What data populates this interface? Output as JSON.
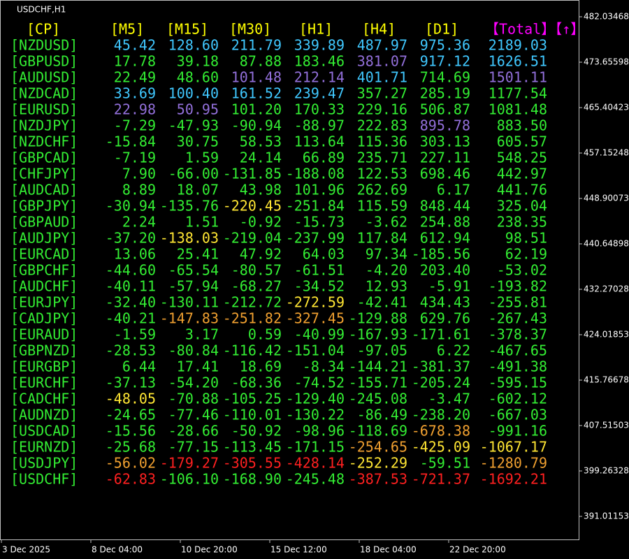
{
  "chart_label": "USDCHF,H1",
  "table": {
    "headers": [
      {
        "text": "[CP]",
        "color": "#ffff00"
      },
      {
        "text": "[M5]",
        "color": "#ffff00"
      },
      {
        "text": "[M15]",
        "color": "#ffff00"
      },
      {
        "text": "[M30]",
        "color": "#ffff00"
      },
      {
        "text": "[H1]",
        "color": "#ffff00"
      },
      {
        "text": "[H4]",
        "color": "#ffff00"
      },
      {
        "text": "[D1]",
        "color": "#ffff00"
      },
      {
        "text": "【Total】【↑】",
        "color": "#ff00ff"
      }
    ],
    "pair_color": "#33ee33",
    "rows": [
      {
        "pair": "[NZDUSD]",
        "cells": [
          "45.42",
          "128.60",
          "211.79",
          "339.89",
          "487.97",
          "975.36",
          "2189.03"
        ],
        "colors": [
          "#40c8ff",
          "#40c8ff",
          "#40c8ff",
          "#40c8ff",
          "#40c8ff",
          "#40c8ff",
          "#40c8ff"
        ]
      },
      {
        "pair": "[GBPUSD]",
        "cells": [
          "17.78",
          "39.18",
          "87.88",
          "183.46",
          "381.07",
          "917.12",
          "1626.51"
        ],
        "colors": [
          "#33ee33",
          "#33ee33",
          "#33ee33",
          "#33ee33",
          "#9370db",
          "#40c8ff",
          "#40c8ff"
        ]
      },
      {
        "pair": "[AUDUSD]",
        "cells": [
          "22.49",
          "48.60",
          "101.48",
          "212.14",
          "401.71",
          "714.69",
          "1501.11"
        ],
        "colors": [
          "#33ee33",
          "#33ee33",
          "#9370db",
          "#9370db",
          "#40c8ff",
          "#33ee33",
          "#9370db"
        ]
      },
      {
        "pair": "[NZDCAD]",
        "cells": [
          "33.69",
          "100.40",
          "161.52",
          "239.47",
          "357.27",
          "285.19",
          "1177.54"
        ],
        "colors": [
          "#40c8ff",
          "#40c8ff",
          "#40c8ff",
          "#40c8ff",
          "#33ee33",
          "#33ee33",
          "#33ee33"
        ]
      },
      {
        "pair": "[EURUSD]",
        "cells": [
          "22.98",
          "50.95",
          "101.20",
          "170.33",
          "229.16",
          "506.87",
          "1081.48"
        ],
        "colors": [
          "#9370db",
          "#9370db",
          "#33ee33",
          "#33ee33",
          "#33ee33",
          "#33ee33",
          "#33ee33"
        ]
      },
      {
        "pair": "[NZDJPY]",
        "cells": [
          "-7.29",
          "-47.93",
          "-90.94",
          "-88.97",
          "222.83",
          "895.78",
          "883.50"
        ],
        "colors": [
          "#33ee33",
          "#33ee33",
          "#33ee33",
          "#33ee33",
          "#33ee33",
          "#9370db",
          "#33ee33"
        ]
      },
      {
        "pair": "[NZDCHF]",
        "cells": [
          "-15.84",
          "30.75",
          "58.53",
          "113.64",
          "115.36",
          "303.13",
          "605.57"
        ],
        "colors": [
          "#33ee33",
          "#33ee33",
          "#33ee33",
          "#33ee33",
          "#33ee33",
          "#33ee33",
          "#33ee33"
        ]
      },
      {
        "pair": "[GBPCAD]",
        "cells": [
          "-7.19",
          "1.59",
          "24.14",
          "66.89",
          "235.71",
          "227.11",
          "548.25"
        ],
        "colors": [
          "#33ee33",
          "#33ee33",
          "#33ee33",
          "#33ee33",
          "#33ee33",
          "#33ee33",
          "#33ee33"
        ]
      },
      {
        "pair": "[CHFJPY]",
        "cells": [
          "7.90",
          "-66.00",
          "-131.85",
          "-188.08",
          "122.53",
          "698.46",
          "442.97"
        ],
        "colors": [
          "#33ee33",
          "#33ee33",
          "#33ee33",
          "#33ee33",
          "#33ee33",
          "#33ee33",
          "#33ee33"
        ]
      },
      {
        "pair": "[AUDCAD]",
        "cells": [
          "8.89",
          "18.07",
          "43.98",
          "101.96",
          "262.69",
          "6.17",
          "441.76"
        ],
        "colors": [
          "#33ee33",
          "#33ee33",
          "#33ee33",
          "#33ee33",
          "#33ee33",
          "#33ee33",
          "#33ee33"
        ]
      },
      {
        "pair": "[GBPJPY]",
        "cells": [
          "-30.94",
          "-135.76",
          "-220.45",
          "-251.84",
          "115.59",
          "848.44",
          "325.04"
        ],
        "colors": [
          "#33ee33",
          "#33ee33",
          "#ffe633",
          "#33ee33",
          "#33ee33",
          "#33ee33",
          "#33ee33"
        ]
      },
      {
        "pair": "[GBPAUD]",
        "cells": [
          "2.24",
          "1.51",
          "-0.92",
          "-15.73",
          "-3.62",
          "254.88",
          "238.35"
        ],
        "colors": [
          "#33ee33",
          "#33ee33",
          "#33ee33",
          "#33ee33",
          "#33ee33",
          "#33ee33",
          "#33ee33"
        ]
      },
      {
        "pair": "[AUDJPY]",
        "cells": [
          "-37.20",
          "-138.03",
          "-219.04",
          "-237.99",
          "117.84",
          "612.94",
          "98.51"
        ],
        "colors": [
          "#33ee33",
          "#ffe633",
          "#33ee33",
          "#33ee33",
          "#33ee33",
          "#33ee33",
          "#33ee33"
        ]
      },
      {
        "pair": "[EURCAD]",
        "cells": [
          "13.06",
          "25.41",
          "47.92",
          "64.03",
          "97.34",
          "-185.56",
          "62.19"
        ],
        "colors": [
          "#33ee33",
          "#33ee33",
          "#33ee33",
          "#33ee33",
          "#33ee33",
          "#33ee33",
          "#33ee33"
        ]
      },
      {
        "pair": "[GBPCHF]",
        "cells": [
          "-44.60",
          "-65.54",
          "-80.57",
          "-61.51",
          "-4.20",
          "203.40",
          "-53.02"
        ],
        "colors": [
          "#33ee33",
          "#33ee33",
          "#33ee33",
          "#33ee33",
          "#33ee33",
          "#33ee33",
          "#33ee33"
        ]
      },
      {
        "pair": "[AUDCHF]",
        "cells": [
          "-40.11",
          "-57.94",
          "-68.27",
          "-34.52",
          "12.93",
          "-5.91",
          "-193.82"
        ],
        "colors": [
          "#33ee33",
          "#33ee33",
          "#33ee33",
          "#33ee33",
          "#33ee33",
          "#33ee33",
          "#33ee33"
        ]
      },
      {
        "pair": "[EURJPY]",
        "cells": [
          "-32.40",
          "-130.11",
          "-212.72",
          "-272.59",
          "-42.41",
          "434.43",
          "-255.81"
        ],
        "colors": [
          "#33ee33",
          "#33ee33",
          "#33ee33",
          "#ffe633",
          "#33ee33",
          "#33ee33",
          "#33ee33"
        ]
      },
      {
        "pair": "[CADJPY]",
        "cells": [
          "-40.21",
          "-147.83",
          "-251.82",
          "-327.45",
          "-129.88",
          "629.76",
          "-267.43"
        ],
        "colors": [
          "#33ee33",
          "#f0a030",
          "#f0a030",
          "#f0a030",
          "#33ee33",
          "#33ee33",
          "#33ee33"
        ]
      },
      {
        "pair": "[EURAUD]",
        "cells": [
          "-1.59",
          "3.17",
          "0.59",
          "-40.99",
          "-167.93",
          "-171.61",
          "-378.37"
        ],
        "colors": [
          "#33ee33",
          "#33ee33",
          "#33ee33",
          "#33ee33",
          "#33ee33",
          "#33ee33",
          "#33ee33"
        ]
      },
      {
        "pair": "[GBPNZD]",
        "cells": [
          "-28.53",
          "-80.84",
          "-116.42",
          "-151.04",
          "-97.05",
          "6.22",
          "-467.65"
        ],
        "colors": [
          "#33ee33",
          "#33ee33",
          "#33ee33",
          "#33ee33",
          "#33ee33",
          "#33ee33",
          "#33ee33"
        ]
      },
      {
        "pair": "[EURGBP]",
        "cells": [
          "6.44",
          "17.41",
          "18.69",
          "-8.34",
          "-144.21",
          "-381.37",
          "-491.38"
        ],
        "colors": [
          "#33ee33",
          "#33ee33",
          "#33ee33",
          "#33ee33",
          "#33ee33",
          "#33ee33",
          "#33ee33"
        ]
      },
      {
        "pair": "[EURCHF]",
        "cells": [
          "-37.13",
          "-54.20",
          "-68.36",
          "-74.52",
          "-155.71",
          "-205.24",
          "-595.15"
        ],
        "colors": [
          "#33ee33",
          "#33ee33",
          "#33ee33",
          "#33ee33",
          "#33ee33",
          "#33ee33",
          "#33ee33"
        ]
      },
      {
        "pair": "[CADCHF]",
        "cells": [
          "-48.05",
          "-70.88",
          "-105.25",
          "-129.40",
          "-245.08",
          "-3.47",
          "-602.12"
        ],
        "colors": [
          "#ffe633",
          "#33ee33",
          "#33ee33",
          "#33ee33",
          "#33ee33",
          "#33ee33",
          "#33ee33"
        ]
      },
      {
        "pair": "[AUDNZD]",
        "cells": [
          "-24.65",
          "-77.46",
          "-110.01",
          "-130.22",
          "-86.49",
          "-238.20",
          "-667.03"
        ],
        "colors": [
          "#33ee33",
          "#33ee33",
          "#33ee33",
          "#33ee33",
          "#33ee33",
          "#33ee33",
          "#33ee33"
        ]
      },
      {
        "pair": "[USDCAD]",
        "cells": [
          "-15.56",
          "-28.66",
          "-50.92",
          "-98.96",
          "-118.69",
          "-678.38",
          "-991.16"
        ],
        "colors": [
          "#33ee33",
          "#33ee33",
          "#33ee33",
          "#33ee33",
          "#33ee33",
          "#f0a030",
          "#33ee33"
        ]
      },
      {
        "pair": "[EURNZD]",
        "cells": [
          "-25.68",
          "-77.15",
          "-113.45",
          "-171.15",
          "-254.65",
          "-425.09",
          "-1067.17"
        ],
        "colors": [
          "#33ee33",
          "#33ee33",
          "#33ee33",
          "#33ee33",
          "#f0a030",
          "#ffe633",
          "#ffe633"
        ]
      },
      {
        "pair": "[USDJPY]",
        "cells": [
          "-56.02",
          "-179.27",
          "-305.55",
          "-428.14",
          "-252.29",
          "-59.51",
          "-1280.79"
        ],
        "colors": [
          "#f0a030",
          "#ff2020",
          "#ff2020",
          "#ff2020",
          "#ffe633",
          "#33ee33",
          "#f0a030"
        ]
      },
      {
        "pair": "[USDCHF]",
        "cells": [
          "-62.83",
          "-106.10",
          "-168.90",
          "-245.48",
          "-387.53",
          "-721.37",
          "-1692.21"
        ],
        "colors": [
          "#ff2020",
          "#33ee33",
          "#33ee33",
          "#33ee33",
          "#ff2020",
          "#ff2020",
          "#ff2020"
        ]
      }
    ]
  },
  "price_axis": [
    "482.03468",
    "473.65598",
    "465.40423",
    "457.15248",
    "448.90073",
    "440.64898",
    "432.27028",
    "424.01853",
    "415.76678",
    "407.51503",
    "399.26328",
    "391.01153"
  ],
  "time_axis": [
    "3 Dec 2025",
    "8 Dec 04:00",
    "10 Dec 20:00",
    "15 Dec 12:00",
    "18 Dec 04:00",
    "22 Dec 20:00"
  ]
}
